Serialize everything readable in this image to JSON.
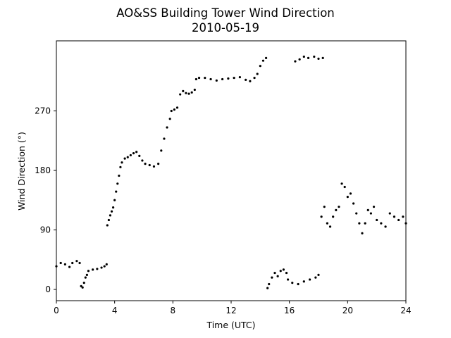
{
  "chart_data": {
    "type": "scatter",
    "title": "AO&SS Building Tower Wind Direction",
    "subtitle": "2010-05-19",
    "xlabel": "Time (UTC)",
    "ylabel": "Wind Direction (°)",
    "xlim": [
      0,
      24
    ],
    "ylim": [
      -17,
      376
    ],
    "xticks": [
      0,
      4,
      8,
      12,
      16,
      20,
      24
    ],
    "yticks": [
      0,
      90,
      180,
      270
    ],
    "grid": false,
    "marker_color": "#000000",
    "segments": [
      {
        "x": [
          0.0,
          0.3,
          0.6,
          0.9,
          1.1,
          1.4,
          1.6
        ],
        "y": [
          35,
          40,
          38,
          34,
          40,
          43,
          40
        ]
      },
      {
        "x": [
          1.7,
          1.8,
          1.9,
          2.0,
          2.1
        ],
        "y": [
          5,
          3,
          10,
          18,
          22
        ]
      },
      {
        "x": [
          2.2,
          2.5,
          2.8,
          3.1,
          3.3,
          3.45
        ],
        "y": [
          28,
          30,
          31,
          33,
          35,
          38
        ]
      },
      {
        "x": [
          3.5,
          3.6,
          3.7,
          3.8,
          3.9,
          4.0
        ],
        "y": [
          97,
          105,
          112,
          118,
          124,
          135
        ]
      },
      {
        "x": [
          4.1,
          4.2,
          4.3,
          4.4,
          4.5,
          4.7,
          4.9,
          5.1,
          5.3,
          5.5,
          5.7,
          5.9,
          6.1,
          6.4,
          6.7,
          7.0,
          7.2,
          7.4,
          7.6,
          7.8
        ],
        "y": [
          148,
          160,
          172,
          185,
          192,
          198,
          200,
          203,
          206,
          208,
          202,
          195,
          190,
          188,
          186,
          190,
          210,
          228,
          245,
          258
        ]
      },
      {
        "x": [
          7.9,
          8.1,
          8.3,
          8.5,
          8.7,
          8.9,
          9.1,
          9.3,
          9.5
        ],
        "y": [
          270,
          272,
          275,
          295,
          300,
          297,
          296,
          298,
          302
        ]
      },
      {
        "x": [
          9.6,
          9.8,
          10.2,
          10.6,
          11.0,
          11.4,
          11.8,
          12.2,
          12.6,
          13.0,
          13.3,
          13.6
        ],
        "y": [
          318,
          320,
          320,
          318,
          316,
          318,
          319,
          320,
          321,
          317,
          315,
          320
        ]
      },
      {
        "x": [
          13.8,
          14.0,
          14.2,
          14.4
        ],
        "y": [
          326,
          338,
          346,
          350
        ]
      },
      {
        "x": [
          14.5,
          14.6,
          14.8,
          15.0,
          15.2,
          15.4,
          15.6,
          15.8
        ],
        "y": [
          2,
          8,
          18,
          25,
          20,
          28,
          30,
          25
        ]
      },
      {
        "x": [
          15.9,
          16.2,
          16.6,
          17.0,
          17.4,
          17.8,
          18.0
        ],
        "y": [
          15,
          10,
          8,
          12,
          15,
          18,
          22
        ]
      },
      {
        "x": [
          16.4,
          16.7,
          17.0,
          17.3,
          17.7,
          18.0,
          18.3
        ],
        "y": [
          345,
          348,
          352,
          350,
          352,
          349,
          350
        ]
      },
      {
        "x": [
          18.2,
          18.4,
          18.6,
          18.8,
          19.0,
          19.2,
          19.4,
          19.6,
          19.8,
          20.0,
          20.2,
          20.4,
          20.6,
          20.8,
          21.0,
          21.2,
          21.4,
          21.6,
          21.8,
          22.0,
          22.3,
          22.6,
          22.9,
          23.2,
          23.5,
          23.8,
          24.0
        ],
        "y": [
          110,
          125,
          100,
          95,
          110,
          120,
          125,
          160,
          155,
          140,
          145,
          130,
          115,
          100,
          85,
          100,
          120,
          115,
          125,
          105,
          100,
          95,
          115,
          110,
          105,
          110,
          100
        ]
      }
    ]
  }
}
